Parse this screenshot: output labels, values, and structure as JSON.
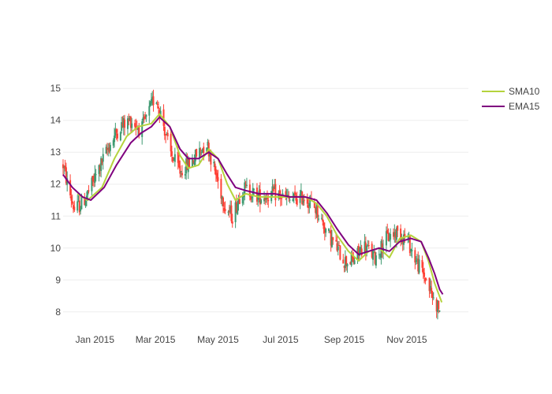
{
  "chart_data": {
    "type": "candlestick",
    "title": "",
    "xlabel": "",
    "ylabel": "",
    "ylim": [
      7.6,
      15.4
    ],
    "xlim": [
      "2014-12-01",
      "2015-12-31"
    ],
    "yticks": [
      8,
      9,
      10,
      11,
      12,
      13,
      14,
      15
    ],
    "xticks": [
      {
        "date": "2015-01-01",
        "label": "Jan 2015"
      },
      {
        "date": "2015-03-01",
        "label": "Mar 2015"
      },
      {
        "date": "2015-05-01",
        "label": "May 2015"
      },
      {
        "date": "2015-07-01",
        "label": "Jul 2015"
      },
      {
        "date": "2015-09-01",
        "label": "Sep 2015"
      },
      {
        "date": "2015-11-01",
        "label": "Nov 2015"
      }
    ],
    "grid": true,
    "legend_position": "top-right",
    "colors": {
      "increasing": "#3d9970",
      "decreasing": "#ff4136",
      "sma": "#b5d33d",
      "ema": "#7f007f",
      "grid": "#eeeeee"
    },
    "price_anchors": [
      {
        "date": "2014-12-01",
        "close": 12.6
      },
      {
        "date": "2014-12-06",
        "close": 11.9
      },
      {
        "date": "2014-12-12",
        "close": 11.2
      },
      {
        "date": "2014-12-20",
        "close": 11.4
      },
      {
        "date": "2014-12-28",
        "close": 11.9
      },
      {
        "date": "2015-01-05",
        "close": 12.5
      },
      {
        "date": "2015-01-15",
        "close": 13.2
      },
      {
        "date": "2015-01-25",
        "close": 13.8
      },
      {
        "date": "2015-02-05",
        "close": 14.0
      },
      {
        "date": "2015-02-15",
        "close": 13.7
      },
      {
        "date": "2015-02-22",
        "close": 14.2
      },
      {
        "date": "2015-03-01",
        "close": 14.8
      },
      {
        "date": "2015-03-08",
        "close": 14.0
      },
      {
        "date": "2015-03-15",
        "close": 13.0
      },
      {
        "date": "2015-03-25",
        "close": 12.4
      },
      {
        "date": "2015-04-05",
        "close": 12.7
      },
      {
        "date": "2015-04-12",
        "close": 13.0
      },
      {
        "date": "2015-04-20",
        "close": 13.3
      },
      {
        "date": "2015-04-28",
        "close": 12.4
      },
      {
        "date": "2015-05-08",
        "close": 11.3
      },
      {
        "date": "2015-05-15",
        "close": 11.0
      },
      {
        "date": "2015-05-25",
        "close": 11.9
      },
      {
        "date": "2015-06-10",
        "close": 11.6
      },
      {
        "date": "2015-06-25",
        "close": 11.7
      },
      {
        "date": "2015-07-10",
        "close": 11.5
      },
      {
        "date": "2015-07-25",
        "close": 11.6
      },
      {
        "date": "2015-08-05",
        "close": 11.2
      },
      {
        "date": "2015-08-15",
        "close": 10.5
      },
      {
        "date": "2015-08-25",
        "close": 10.0
      },
      {
        "date": "2015-09-01",
        "close": 9.6
      },
      {
        "date": "2015-09-10",
        "close": 9.6
      },
      {
        "date": "2015-09-20",
        "close": 10.1
      },
      {
        "date": "2015-10-01",
        "close": 9.7
      },
      {
        "date": "2015-10-12",
        "close": 10.3
      },
      {
        "date": "2015-10-22",
        "close": 10.5
      },
      {
        "date": "2015-11-01",
        "close": 10.3
      },
      {
        "date": "2015-11-10",
        "close": 9.6
      },
      {
        "date": "2015-11-20",
        "close": 9.0
      },
      {
        "date": "2015-11-28",
        "close": 8.3
      },
      {
        "date": "2015-12-03",
        "close": 8.1
      }
    ],
    "series": [
      {
        "name": "SMA10",
        "color": "#b5d33d",
        "points": [
          {
            "date": "2014-12-15",
            "y": 11.7
          },
          {
            "date": "2014-12-25",
            "y": 11.5
          },
          {
            "date": "2015-01-08",
            "y": 11.9
          },
          {
            "date": "2015-01-20",
            "y": 12.8
          },
          {
            "date": "2015-02-01",
            "y": 13.5
          },
          {
            "date": "2015-02-12",
            "y": 13.8
          },
          {
            "date": "2015-02-25",
            "y": 13.9
          },
          {
            "date": "2015-03-05",
            "y": 14.2
          },
          {
            "date": "2015-03-15",
            "y": 13.8
          },
          {
            "date": "2015-03-25",
            "y": 12.9
          },
          {
            "date": "2015-04-02",
            "y": 12.5
          },
          {
            "date": "2015-04-12",
            "y": 12.6
          },
          {
            "date": "2015-04-22",
            "y": 13.1
          },
          {
            "date": "2015-05-01",
            "y": 12.8
          },
          {
            "date": "2015-05-10",
            "y": 12.0
          },
          {
            "date": "2015-05-18",
            "y": 11.5
          },
          {
            "date": "2015-05-28",
            "y": 11.7
          },
          {
            "date": "2015-06-10",
            "y": 11.6
          },
          {
            "date": "2015-06-25",
            "y": 11.6
          },
          {
            "date": "2015-07-10",
            "y": 11.6
          },
          {
            "date": "2015-07-25",
            "y": 11.6
          },
          {
            "date": "2015-08-05",
            "y": 11.4
          },
          {
            "date": "2015-08-15",
            "y": 11.0
          },
          {
            "date": "2015-08-25",
            "y": 10.4
          },
          {
            "date": "2015-09-05",
            "y": 9.9
          },
          {
            "date": "2015-09-15",
            "y": 9.6
          },
          {
            "date": "2015-09-25",
            "y": 9.9
          },
          {
            "date": "2015-10-05",
            "y": 10.0
          },
          {
            "date": "2015-10-15",
            "y": 9.7
          },
          {
            "date": "2015-10-25",
            "y": 10.3
          },
          {
            "date": "2015-11-05",
            "y": 10.4
          },
          {
            "date": "2015-11-15",
            "y": 10.2
          },
          {
            "date": "2015-11-22",
            "y": 9.6
          },
          {
            "date": "2015-11-28",
            "y": 8.9
          },
          {
            "date": "2015-12-05",
            "y": 8.3
          }
        ]
      },
      {
        "name": "EMA15",
        "color": "#7f007f",
        "points": [
          {
            "date": "2014-12-01",
            "y": 12.3
          },
          {
            "date": "2014-12-10",
            "y": 11.9
          },
          {
            "date": "2014-12-20",
            "y": 11.6
          },
          {
            "date": "2014-12-28",
            "y": 11.5
          },
          {
            "date": "2015-01-10",
            "y": 11.9
          },
          {
            "date": "2015-01-22",
            "y": 12.6
          },
          {
            "date": "2015-02-05",
            "y": 13.3
          },
          {
            "date": "2015-02-15",
            "y": 13.6
          },
          {
            "date": "2015-02-25",
            "y": 13.8
          },
          {
            "date": "2015-03-05",
            "y": 14.1
          },
          {
            "date": "2015-03-15",
            "y": 13.8
          },
          {
            "date": "2015-03-25",
            "y": 13.1
          },
          {
            "date": "2015-04-02",
            "y": 12.8
          },
          {
            "date": "2015-04-12",
            "y": 12.8
          },
          {
            "date": "2015-04-22",
            "y": 13.0
          },
          {
            "date": "2015-05-01",
            "y": 12.8
          },
          {
            "date": "2015-05-10",
            "y": 12.3
          },
          {
            "date": "2015-05-18",
            "y": 11.9
          },
          {
            "date": "2015-05-28",
            "y": 11.8
          },
          {
            "date": "2015-06-10",
            "y": 11.7
          },
          {
            "date": "2015-06-25",
            "y": 11.7
          },
          {
            "date": "2015-07-10",
            "y": 11.6
          },
          {
            "date": "2015-07-25",
            "y": 11.6
          },
          {
            "date": "2015-08-05",
            "y": 11.5
          },
          {
            "date": "2015-08-15",
            "y": 11.1
          },
          {
            "date": "2015-08-25",
            "y": 10.6
          },
          {
            "date": "2015-09-05",
            "y": 10.1
          },
          {
            "date": "2015-09-15",
            "y": 9.8
          },
          {
            "date": "2015-09-25",
            "y": 9.9
          },
          {
            "date": "2015-10-05",
            "y": 10.0
          },
          {
            "date": "2015-10-15",
            "y": 9.9
          },
          {
            "date": "2015-10-25",
            "y": 10.2
          },
          {
            "date": "2015-11-05",
            "y": 10.3
          },
          {
            "date": "2015-11-15",
            "y": 10.2
          },
          {
            "date": "2015-11-22",
            "y": 9.7
          },
          {
            "date": "2015-11-28",
            "y": 9.2
          },
          {
            "date": "2015-12-03",
            "y": 8.7
          },
          {
            "date": "2015-12-06",
            "y": 8.55
          }
        ]
      }
    ]
  }
}
